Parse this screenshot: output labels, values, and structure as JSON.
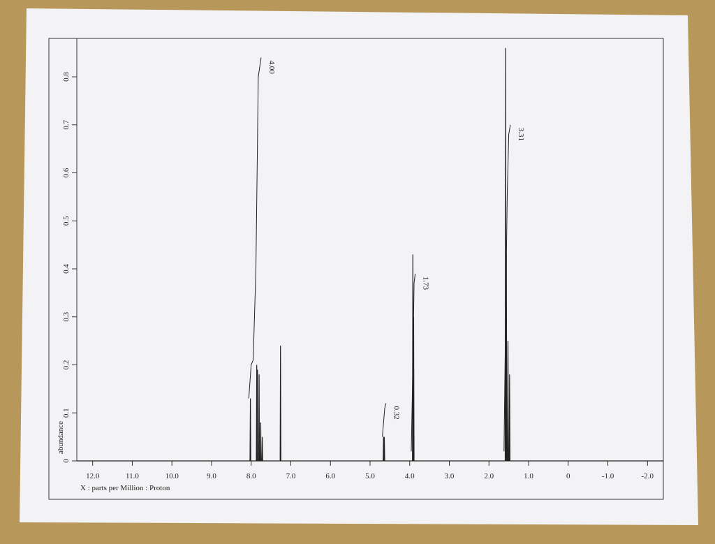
{
  "chart_data": {
    "type": "line",
    "xlabel": "X : parts per Million : Proton",
    "ylabel": "abundance",
    "xlim": [
      12.4,
      -2.4
    ],
    "ylim": [
      0,
      0.88
    ],
    "xticks": [
      {
        "value": 12,
        "label": "12.0"
      },
      {
        "value": 11,
        "label": "11.0"
      },
      {
        "value": 10,
        "label": "10.0"
      },
      {
        "value": 9,
        "label": "9.0"
      },
      {
        "value": 8,
        "label": "8.0"
      },
      {
        "value": 7,
        "label": "7.0"
      },
      {
        "value": 6,
        "label": "6.0"
      },
      {
        "value": 5,
        "label": "5.0"
      },
      {
        "value": 4,
        "label": "4.0"
      },
      {
        "value": 3,
        "label": "3.0"
      },
      {
        "value": 2,
        "label": "2.0"
      },
      {
        "value": 1,
        "label": "1.0"
      },
      0,
      {
        "value": -1,
        "label": "-1.0"
      },
      {
        "value": -2,
        "label": "-2.0"
      }
    ],
    "yticks": [
      0,
      0.1,
      0.2,
      0.3,
      0.4,
      0.5,
      0.6,
      0.7,
      0.8
    ],
    "color": "#222222",
    "x": [
      12.4,
      8.03,
      8.02,
      8.01,
      7.87,
      7.86,
      7.85,
      7.845,
      7.84,
      7.835,
      7.81,
      7.8,
      7.79,
      7.77,
      7.76,
      7.75,
      7.73,
      7.72,
      7.71,
      7.27,
      7.26,
      7.25,
      4.67,
      4.66,
      4.655,
      4.645,
      4.64,
      4.63,
      3.93,
      3.92,
      3.91,
      3.9,
      3.89,
      1.59,
      1.58,
      1.57,
      1.56,
      1.55,
      1.53,
      1.52,
      1.51,
      1.49,
      1.48,
      1.47,
      -2.4
    ],
    "values": [
      0,
      0,
      0.13,
      0,
      0,
      0.2,
      0,
      0,
      0.19,
      0,
      0,
      0.18,
      0,
      0,
      0.08,
      0,
      0,
      0.05,
      0,
      0,
      0.24,
      0,
      0,
      0.05,
      0,
      0,
      0.05,
      0,
      0,
      0.43,
      0,
      0.3,
      0,
      0,
      0.86,
      0,
      0.43,
      0,
      0,
      0.25,
      0,
      0,
      0.18,
      0,
      0
    ],
    "integrals": [
      {
        "label": "4.00",
        "x": [
          8.06,
          8.0,
          7.95,
          7.88,
          7.82,
          7.75
        ],
        "values": [
          0.13,
          0.2,
          0.21,
          0.4,
          0.8,
          0.84
        ]
      },
      {
        "label": "0.32",
        "x": [
          4.69,
          4.66,
          4.63,
          4.6
        ],
        "values": [
          0.05,
          0.08,
          0.11,
          0.12
        ]
      },
      {
        "label": "1.73",
        "x": [
          3.96,
          3.92,
          3.89,
          3.86
        ],
        "values": [
          0.02,
          0.2,
          0.37,
          0.39
        ]
      },
      {
        "label": "3.31",
        "x": [
          1.62,
          1.58,
          1.54,
          1.5,
          1.46
        ],
        "values": [
          0.02,
          0.3,
          0.55,
          0.68,
          0.7
        ]
      }
    ]
  }
}
